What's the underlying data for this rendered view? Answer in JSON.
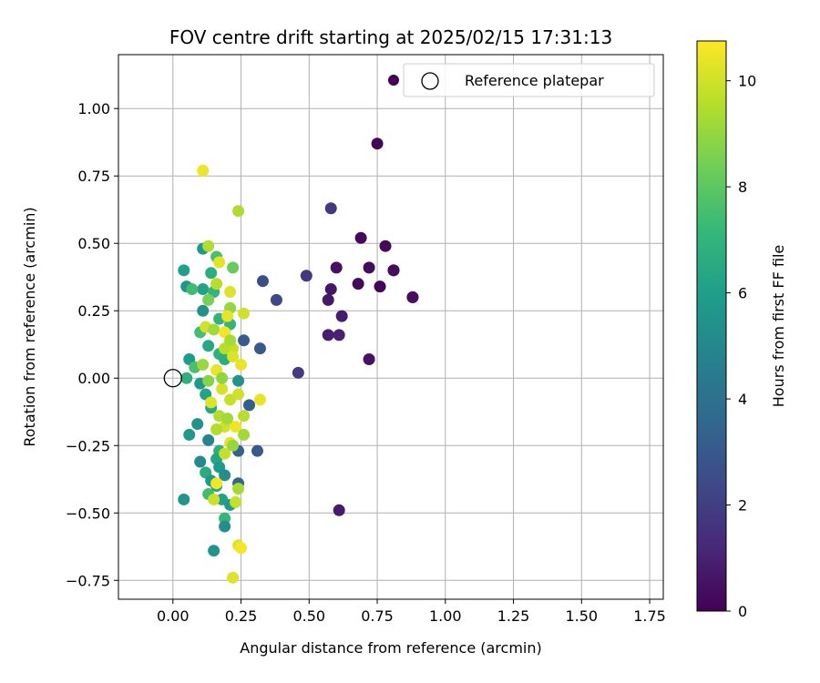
{
  "chart_data": {
    "type": "scatter",
    "title": "FOV centre drift starting at 2025/02/15 17:31:13",
    "xlabel": "Angular distance from reference (arcmin)",
    "ylabel": "Rotation from reference (arcmin)",
    "xlim": [
      -0.2,
      1.8
    ],
    "ylim": [
      -0.82,
      1.2
    ],
    "x_ticks": [
      "0.00",
      "0.25",
      "0.50",
      "0.75",
      "1.00",
      "1.25",
      "1.50",
      "1.75"
    ],
    "x_tick_values": [
      0,
      0.25,
      0.5,
      0.75,
      1.0,
      1.25,
      1.5,
      1.75
    ],
    "y_ticks": [
      "−0.75",
      "−0.50",
      "−0.25",
      "0.00",
      "0.25",
      "0.50",
      "0.75",
      "1.00"
    ],
    "y_tick_values": [
      -0.75,
      -0.5,
      -0.25,
      0,
      0.25,
      0.5,
      0.75,
      1.0
    ],
    "grid": true,
    "legend": {
      "placement": "top-right",
      "entries": [
        "",
        "Reference platepar"
      ]
    },
    "colorbar": {
      "label": "Hours from first FF file",
      "min": 0,
      "max": 10.75,
      "ticks": [
        "0",
        "2",
        "4",
        "6",
        "8",
        "10"
      ],
      "tick_values": [
        0,
        2,
        4,
        6,
        8,
        10
      ],
      "colormap": [
        "#440154",
        "#482878",
        "#3e4989",
        "#31688e",
        "#26828e",
        "#1f9e89",
        "#35b779",
        "#6ece58",
        "#b5de2b",
        "#fde725"
      ]
    },
    "reference_point": {
      "x": 0.0,
      "y": 0.0
    },
    "series": [
      {
        "points": [
          [
            0.75,
            0.87,
            0.1
          ],
          [
            0.69,
            0.52,
            0.2
          ],
          [
            0.78,
            0.49,
            0.2
          ],
          [
            0.81,
            0.4,
            0.1
          ],
          [
            0.81,
            0.4,
            0.3
          ],
          [
            0.72,
            0.41,
            0.3
          ],
          [
            0.68,
            0.35,
            0.2
          ],
          [
            0.76,
            0.34,
            0.1
          ],
          [
            0.88,
            0.3,
            0.2
          ],
          [
            0.88,
            0.3,
            0.4
          ],
          [
            0.58,
            0.33,
            0.6
          ],
          [
            0.57,
            0.29,
            0.7
          ],
          [
            0.6,
            0.41,
            0.5
          ],
          [
            0.62,
            0.23,
            0.8
          ],
          [
            0.57,
            0.16,
            0.9
          ],
          [
            0.61,
            0.16,
            1.0
          ],
          [
            0.72,
            0.07,
            0.5
          ],
          [
            0.61,
            -0.49,
            0.8
          ],
          [
            0.58,
            0.63,
            1.8
          ],
          [
            0.49,
            0.38,
            1.8
          ],
          [
            0.38,
            0.29,
            2.4
          ],
          [
            0.33,
            0.36,
            2.6
          ],
          [
            0.46,
            0.02,
            1.9
          ],
          [
            0.32,
            0.11,
            3.0
          ],
          [
            0.31,
            -0.27,
            3.0
          ],
          [
            0.26,
            0.14,
            3.1
          ],
          [
            0.28,
            -0.1,
            3.2
          ],
          [
            0.24,
            -0.27,
            3.4
          ],
          [
            0.24,
            -0.39,
            3.5
          ],
          [
            0.04,
            0.4,
            6.0
          ],
          [
            0.05,
            0.34,
            5.6
          ],
          [
            0.11,
            0.48,
            5.8
          ],
          [
            0.16,
            0.45,
            7.6
          ],
          [
            0.14,
            0.39,
            6.7
          ],
          [
            0.11,
            0.33,
            6.2
          ],
          [
            0.15,
            0.32,
            7.0
          ],
          [
            0.07,
            0.33,
            7.4
          ],
          [
            0.11,
            0.25,
            5.4
          ],
          [
            0.17,
            0.22,
            6.9
          ],
          [
            0.1,
            0.17,
            7.5
          ],
          [
            0.13,
            0.12,
            6.4
          ],
          [
            0.06,
            0.07,
            5.8
          ],
          [
            0.17,
            0.09,
            6.9
          ],
          [
            0.08,
            0.04,
            7.6
          ],
          [
            0.05,
            0.0,
            6.8
          ],
          [
            0.1,
            -0.02,
            5.7
          ],
          [
            0.12,
            -0.06,
            6.2
          ],
          [
            0.14,
            -0.11,
            6.4
          ],
          [
            0.09,
            -0.17,
            5.5
          ],
          [
            0.13,
            -0.23,
            4.9
          ],
          [
            0.06,
            -0.21,
            5.7
          ],
          [
            0.17,
            -0.27,
            6.8
          ],
          [
            0.16,
            -0.3,
            6.3
          ],
          [
            0.17,
            -0.33,
            5.9
          ],
          [
            0.1,
            -0.31,
            5.1
          ],
          [
            0.12,
            -0.35,
            6.6
          ],
          [
            0.14,
            -0.38,
            5.8
          ],
          [
            0.19,
            -0.36,
            5.3
          ],
          [
            0.13,
            -0.43,
            7.4
          ],
          [
            0.04,
            -0.45,
            5.6
          ],
          [
            0.16,
            -0.4,
            6.3
          ],
          [
            0.18,
            -0.45,
            6.1
          ],
          [
            0.21,
            -0.47,
            5.9
          ],
          [
            0.19,
            -0.52,
            7.1
          ],
          [
            0.19,
            -0.55,
            5.3
          ],
          [
            0.15,
            -0.64,
            5.6
          ],
          [
            0.24,
            -0.01,
            5.5
          ],
          [
            0.19,
            0.07,
            6.7
          ],
          [
            0.21,
            0.2,
            7.0
          ],
          [
            0.16,
            0.35,
            9.6
          ],
          [
            0.13,
            0.29,
            8.5
          ],
          [
            0.13,
            0.49,
            9.5
          ],
          [
            0.17,
            0.43,
            10.3
          ],
          [
            0.21,
            0.32,
            10.2
          ],
          [
            0.22,
            0.41,
            8.2
          ],
          [
            0.24,
            0.62,
            9.4
          ],
          [
            0.11,
            0.77,
            10.5
          ],
          [
            0.12,
            0.19,
            10.0
          ],
          [
            0.15,
            0.18,
            9.2
          ],
          [
            0.19,
            0.17,
            10.6
          ],
          [
            0.22,
            0.11,
            9.8
          ],
          [
            0.25,
            0.05,
            10.4
          ],
          [
            0.26,
            0.24,
            10.0
          ],
          [
            0.21,
            0.26,
            9.0
          ],
          [
            0.2,
            0.23,
            10.4
          ],
          [
            0.19,
            0.11,
            9.6
          ],
          [
            0.16,
            0.03,
            10.4
          ],
          [
            0.18,
            -0.04,
            10.1
          ],
          [
            0.21,
            -0.08,
            9.8
          ],
          [
            0.14,
            -0.09,
            10.2
          ],
          [
            0.17,
            -0.14,
            9.5
          ],
          [
            0.19,
            -0.18,
            10.0
          ],
          [
            0.23,
            -0.18,
            10.5
          ],
          [
            0.26,
            -0.14,
            9.6
          ],
          [
            0.26,
            -0.21,
            9.2
          ],
          [
            0.21,
            -0.24,
            10.3
          ],
          [
            0.19,
            -0.28,
            9.8
          ],
          [
            0.22,
            -0.25,
            9.0
          ],
          [
            0.15,
            -0.45,
            9.9
          ],
          [
            0.16,
            -0.39,
            10.6
          ],
          [
            0.24,
            -0.41,
            9.3
          ],
          [
            0.23,
            -0.46,
            9.8
          ],
          [
            0.24,
            -0.62,
            10.2
          ],
          [
            0.25,
            -0.63,
            10.6
          ],
          [
            0.22,
            -0.74,
            10.2
          ],
          [
            0.32,
            -0.08,
            10.4
          ],
          [
            0.16,
            -0.19,
            9.5
          ],
          [
            0.2,
            -0.15,
            9.2
          ],
          [
            0.24,
            -0.06,
            10.0
          ],
          [
            0.11,
            0.05,
            9.1
          ],
          [
            0.13,
            -0.01,
            8.8
          ],
          [
            0.22,
            0.08,
            10.2
          ],
          [
            0.18,
            0.0,
            8.9
          ],
          [
            0.21,
            0.14,
            9.3
          ]
        ]
      }
    ]
  }
}
